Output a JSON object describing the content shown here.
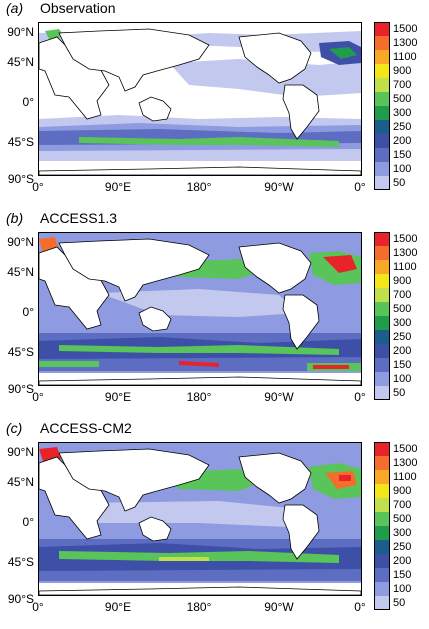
{
  "panels": [
    {
      "label": "(a)",
      "title": "Observation"
    },
    {
      "label": "(b)",
      "title": "ACCESS1.3"
    },
    {
      "label": "(c)",
      "title": "ACCESS-CM2"
    }
  ],
  "lat_labels": [
    "90°N",
    "45°N",
    "0°",
    "45°S",
    "90°S"
  ],
  "lon_labels": [
    "0°",
    "90°E",
    "180°",
    "90°W",
    "0°"
  ],
  "legend_levels": [
    "1500",
    "1300",
    "1100",
    "900",
    "700",
    "500",
    "300",
    "250",
    "200",
    "150",
    "100",
    "50"
  ],
  "legend_colors": [
    "#e8232a",
    "#f46d2b",
    "#f9a825",
    "#f2e61a",
    "#bfe04a",
    "#59c45a",
    "#1f9d4a",
    "#1b5e8c",
    "#3e4fa8",
    "#5d6dc2",
    "#8f9be0",
    "#c3c8ef",
    "#ffffff"
  ],
  "colors": {
    "land": "#ffffff",
    "coast": "#000000"
  }
}
